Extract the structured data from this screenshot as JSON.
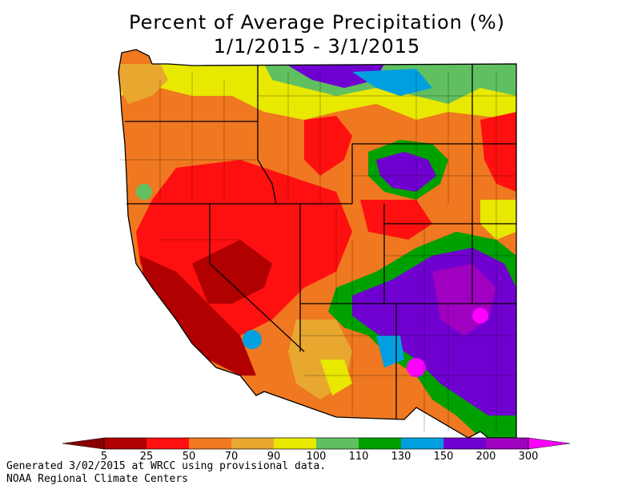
{
  "title": {
    "line1": "Percent of Average Precipitation (%)",
    "line2": "1/1/2015 - 3/1/2015"
  },
  "legend": {
    "ticks": [
      "5",
      "25",
      "50",
      "70",
      "90",
      "100",
      "110",
      "130",
      "150",
      "200",
      "300"
    ],
    "colors": [
      "#b00000",
      "#ff1010",
      "#f07820",
      "#e8a830",
      "#e8e800",
      "#60c060",
      "#00a000",
      "#00a0e0",
      "#7000d0",
      "#a000c0",
      "#ff00ff"
    ],
    "underflow_color": "#880000",
    "overflow_color": "#ff00ff"
  },
  "footer": {
    "line1": "Generated 3/02/2015 at WRCC using provisional data.",
    "line2": "NOAA Regional Climate Centers"
  }
}
